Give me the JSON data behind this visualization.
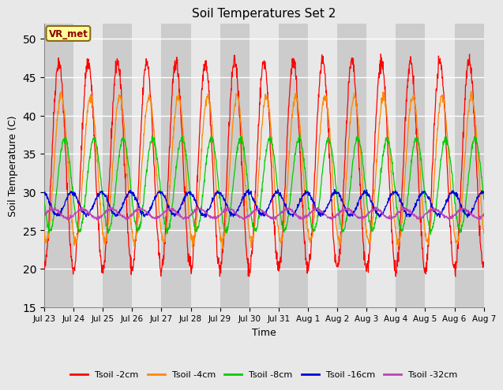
{
  "title": "Soil Temperatures Set 2",
  "xlabel": "Time",
  "ylabel": "Soil Temperature (C)",
  "ylim": [
    15,
    52
  ],
  "yticks": [
    15,
    20,
    25,
    30,
    35,
    40,
    45,
    50
  ],
  "x_labels": [
    "Jul 23",
    "Jul 24",
    "Jul 25",
    "Jul 26",
    "Jul 27",
    "Jul 28",
    "Jul 29",
    "Jul 30",
    "Jul 31",
    "Aug 1",
    "Aug 2",
    "Aug 3",
    "Aug 4",
    "Aug 5",
    "Aug 6",
    "Aug 7"
  ],
  "annotation_text": "VR_met",
  "annotation_bg": "#ffff99",
  "annotation_border": "#8B6914",
  "series": [
    {
      "label": "Tsoil -2cm",
      "color": "#ff0000",
      "amplitude": 13.5,
      "mean": 33.5,
      "phase_shift": 0.0,
      "noise": 0.5,
      "min_clip": 19.0,
      "max_clip": 50.0
    },
    {
      "label": "Tsoil -4cm",
      "color": "#ff8800",
      "amplitude": 9.5,
      "mean": 33.0,
      "phase_shift": 0.08,
      "noise": 0.3,
      "min_clip": 21.0,
      "max_clip": 48.0
    },
    {
      "label": "Tsoil -8cm",
      "color": "#00cc00",
      "amplitude": 6.0,
      "mean": 31.0,
      "phase_shift": 0.2,
      "noise": 0.2,
      "min_clip": 24.0,
      "max_clip": 40.0
    },
    {
      "label": "Tsoil -16cm",
      "color": "#0000dd",
      "amplitude": 1.5,
      "mean": 28.5,
      "phase_shift": 0.45,
      "noise": 0.15,
      "min_clip": 26.5,
      "max_clip": 32.0
    },
    {
      "label": "Tsoil -32cm",
      "color": "#bb44bb",
      "amplitude": 0.6,
      "mean": 27.2,
      "phase_shift": 0.8,
      "noise": 0.1,
      "min_clip": 26.2,
      "max_clip": 28.5
    }
  ],
  "fig_bg": "#e8e8e8",
  "plot_bg": "#e0e0e0",
  "band_dark": "#cccccc",
  "band_light": "#e8e8e8",
  "grid_color": "#ffffff",
  "n_points": 1440,
  "n_days": 15
}
